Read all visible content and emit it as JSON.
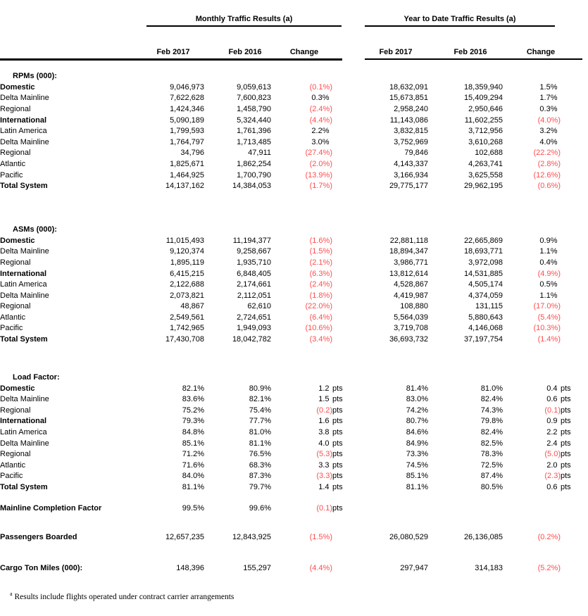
{
  "header": {
    "monthly_title": "Monthly Traffic Results (a)",
    "ytd_title": "Year to Date Traffic Results (a)",
    "columns": [
      "Feb 2017",
      "Feb 2016",
      "Change"
    ]
  },
  "colors": {
    "text": "#000000",
    "negative_value": "#ff4d4d",
    "rule": "#000000",
    "background": "#ffffff"
  },
  "units": {
    "points_suffix": "pts"
  },
  "sections": [
    {
      "title": "RPMs (000):",
      "rows": [
        {
          "label": "Domestic",
          "level": 1,
          "bold": true,
          "m": [
            "9,046,973",
            "9,059,613",
            "(0.1%)",
            ""
          ],
          "y": [
            "18,632,091",
            "18,359,940",
            "1.5%",
            ""
          ]
        },
        {
          "label": "Delta Mainline",
          "level": 2,
          "bold": false,
          "m": [
            "7,622,628",
            "7,600,823",
            "0.3%",
            ""
          ],
          "y": [
            "15,673,851",
            "15,409,294",
            "1.7%",
            ""
          ]
        },
        {
          "label": "Regional",
          "level": 2,
          "bold": false,
          "m": [
            "1,424,346",
            "1,458,790",
            "(2.4%)",
            ""
          ],
          "y": [
            "2,958,240",
            "2,950,646",
            "0.3%",
            ""
          ]
        },
        {
          "label": "International",
          "level": 1,
          "bold": true,
          "m": [
            "5,090,189",
            "5,324,440",
            "(4.4%)",
            ""
          ],
          "y": [
            "11,143,086",
            "11,602,255",
            "(4.0%)",
            ""
          ]
        },
        {
          "label": "Latin America",
          "level": 2,
          "bold": false,
          "m": [
            "1,799,593",
            "1,761,396",
            "2.2%",
            ""
          ],
          "y": [
            "3,832,815",
            "3,712,956",
            "3.2%",
            ""
          ]
        },
        {
          "label": "Delta Mainline",
          "level": 3,
          "bold": false,
          "m": [
            "1,764,797",
            "1,713,485",
            "3.0%",
            ""
          ],
          "y": [
            "3,752,969",
            "3,610,268",
            "4.0%",
            ""
          ]
        },
        {
          "label": "Regional",
          "level": 3,
          "bold": false,
          "m": [
            "34,796",
            "47,911",
            "(27.4%)",
            ""
          ],
          "y": [
            "79,846",
            "102,688",
            "(22.2%)",
            ""
          ]
        },
        {
          "label": "Atlantic",
          "level": 2,
          "bold": false,
          "m": [
            "1,825,671",
            "1,862,254",
            "(2.0%)",
            ""
          ],
          "y": [
            "4,143,337",
            "4,263,741",
            "(2.8%)",
            ""
          ]
        },
        {
          "label": "Pacific",
          "level": 2,
          "bold": false,
          "m": [
            "1,464,925",
            "1,700,790",
            "(13.9%)",
            ""
          ],
          "y": [
            "3,166,934",
            "3,625,558",
            "(12.6%)",
            ""
          ]
        },
        {
          "label": "Total System",
          "level": 1,
          "bold": true,
          "m": [
            "14,137,162",
            "14,384,053",
            "(1.7%)",
            ""
          ],
          "y": [
            "29,775,177",
            "29,962,195",
            "(0.6%)",
            ""
          ]
        }
      ]
    },
    {
      "title": "ASMs (000):",
      "rows": [
        {
          "label": "Domestic",
          "level": 1,
          "bold": true,
          "m": [
            "11,015,493",
            "11,194,377",
            "(1.6%)",
            ""
          ],
          "y": [
            "22,881,118",
            "22,665,869",
            "0.9%",
            ""
          ]
        },
        {
          "label": "Delta Mainline",
          "level": 2,
          "bold": false,
          "m": [
            "9,120,374",
            "9,258,667",
            "(1.5%)",
            ""
          ],
          "y": [
            "18,894,347",
            "18,693,771",
            "1.1%",
            ""
          ]
        },
        {
          "label": "Regional",
          "level": 2,
          "bold": false,
          "m": [
            "1,895,119",
            "1,935,710",
            "(2.1%)",
            ""
          ],
          "y": [
            "3,986,771",
            "3,972,098",
            "0.4%",
            ""
          ]
        },
        {
          "label": "International",
          "level": 1,
          "bold": true,
          "m": [
            "6,415,215",
            "6,848,405",
            "(6.3%)",
            ""
          ],
          "y": [
            "13,812,614",
            "14,531,885",
            "(4.9%)",
            ""
          ]
        },
        {
          "label": "Latin America",
          "level": 2,
          "bold": false,
          "m": [
            "2,122,688",
            "2,174,661",
            "(2.4%)",
            ""
          ],
          "y": [
            "4,528,867",
            "4,505,174",
            "0.5%",
            ""
          ]
        },
        {
          "label": "Delta Mainline",
          "level": 3,
          "bold": false,
          "m": [
            "2,073,821",
            "2,112,051",
            "(1.8%)",
            ""
          ],
          "y": [
            "4,419,987",
            "4,374,059",
            "1.1%",
            ""
          ]
        },
        {
          "label": "Regional",
          "level": 3,
          "bold": false,
          "m": [
            "48,867",
            "62,610",
            "(22.0%)",
            ""
          ],
          "y": [
            "108,880",
            "131,115",
            "(17.0%)",
            ""
          ]
        },
        {
          "label": "Atlantic",
          "level": 2,
          "bold": false,
          "m": [
            "2,549,561",
            "2,724,651",
            "(6.4%)",
            ""
          ],
          "y": [
            "5,564,039",
            "5,880,643",
            "(5.4%)",
            ""
          ]
        },
        {
          "label": "Pacific",
          "level": 2,
          "bold": false,
          "m": [
            "1,742,965",
            "1,949,093",
            "(10.6%)",
            ""
          ],
          "y": [
            "3,719,708",
            "4,146,068",
            "(10.3%)",
            ""
          ]
        },
        {
          "label": "Total System",
          "level": 1,
          "bold": true,
          "m": [
            "17,430,708",
            "18,042,782",
            "(3.4%)",
            ""
          ],
          "y": [
            "36,693,732",
            "37,197,754",
            "(1.4%)",
            ""
          ]
        }
      ]
    },
    {
      "title": "Load Factor:",
      "rows": [
        {
          "label": "Domestic",
          "level": 1,
          "bold": true,
          "m": [
            "82.1%",
            "80.9%",
            "1.2",
            "pts"
          ],
          "y": [
            "81.4%",
            "81.0%",
            "0.4",
            "pts"
          ]
        },
        {
          "label": "Delta Mainline",
          "level": 2,
          "bold": false,
          "m": [
            "83.6%",
            "82.1%",
            "1.5",
            "pts"
          ],
          "y": [
            "83.0%",
            "82.4%",
            "0.6",
            "pts"
          ]
        },
        {
          "label": "Regional",
          "level": 2,
          "bold": false,
          "m": [
            "75.2%",
            "75.4%",
            "(0.2)",
            "pts"
          ],
          "y": [
            "74.2%",
            "74.3%",
            "(0.1)",
            "pts"
          ]
        },
        {
          "label": "International",
          "level": 1,
          "bold": true,
          "m": [
            "79.3%",
            "77.7%",
            "1.6",
            "pts"
          ],
          "y": [
            "80.7%",
            "79.8%",
            "0.9",
            "pts"
          ]
        },
        {
          "label": "Latin America",
          "level": 2,
          "bold": false,
          "m": [
            "84.8%",
            "81.0%",
            "3.8",
            "pts"
          ],
          "y": [
            "84.6%",
            "82.4%",
            "2.2",
            "pts"
          ]
        },
        {
          "label": "Delta Mainline",
          "level": 3,
          "bold": false,
          "m": [
            "85.1%",
            "81.1%",
            "4.0",
            "pts"
          ],
          "y": [
            "84.9%",
            "82.5%",
            "2.4",
            "pts"
          ]
        },
        {
          "label": "Regional",
          "level": 3,
          "bold": false,
          "m": [
            "71.2%",
            "76.5%",
            "(5.3)",
            "pts"
          ],
          "y": [
            "73.3%",
            "78.3%",
            "(5.0)",
            "pts"
          ]
        },
        {
          "label": "Atlantic",
          "level": 2,
          "bold": false,
          "m": [
            "71.6%",
            "68.3%",
            "3.3",
            "pts"
          ],
          "y": [
            "74.5%",
            "72.5%",
            "2.0",
            "pts"
          ]
        },
        {
          "label": "Pacific",
          "level": 2,
          "bold": false,
          "m": [
            "84.0%",
            "87.3%",
            "(3.3)",
            "pts"
          ],
          "y": [
            "85.1%",
            "87.4%",
            "(2.3)",
            "pts"
          ]
        },
        {
          "label": "Total System",
          "level": 1,
          "bold": true,
          "m": [
            "81.1%",
            "79.7%",
            "1.4",
            "pts"
          ],
          "y": [
            "81.1%",
            "80.5%",
            "0.6",
            "pts"
          ]
        }
      ]
    }
  ],
  "standalone_rows": [
    {
      "label": "Mainline Completion Factor",
      "level": 0,
      "bold": true,
      "m": [
        "99.5%",
        "99.6%",
        "(0.1)",
        "pts"
      ],
      "y": [
        "",
        "",
        "",
        ""
      ]
    },
    {
      "label": "Passengers Boarded",
      "level": 0,
      "bold": true,
      "m": [
        "12,657,235",
        "12,843,925",
        "(1.5%)",
        ""
      ],
      "y": [
        "26,080,529",
        "26,136,085",
        "(0.2%)",
        ""
      ]
    },
    {
      "label": "Cargo Ton Miles (000):",
      "level": 0,
      "bold": true,
      "m": [
        "148,396",
        "155,297",
        "(4.4%)",
        ""
      ],
      "y": [
        "297,947",
        "314,183",
        "(5.2%)",
        ""
      ]
    }
  ],
  "footnote": {
    "marker": "a",
    "text": "Results include flights operated under contract carrier arrangements"
  }
}
